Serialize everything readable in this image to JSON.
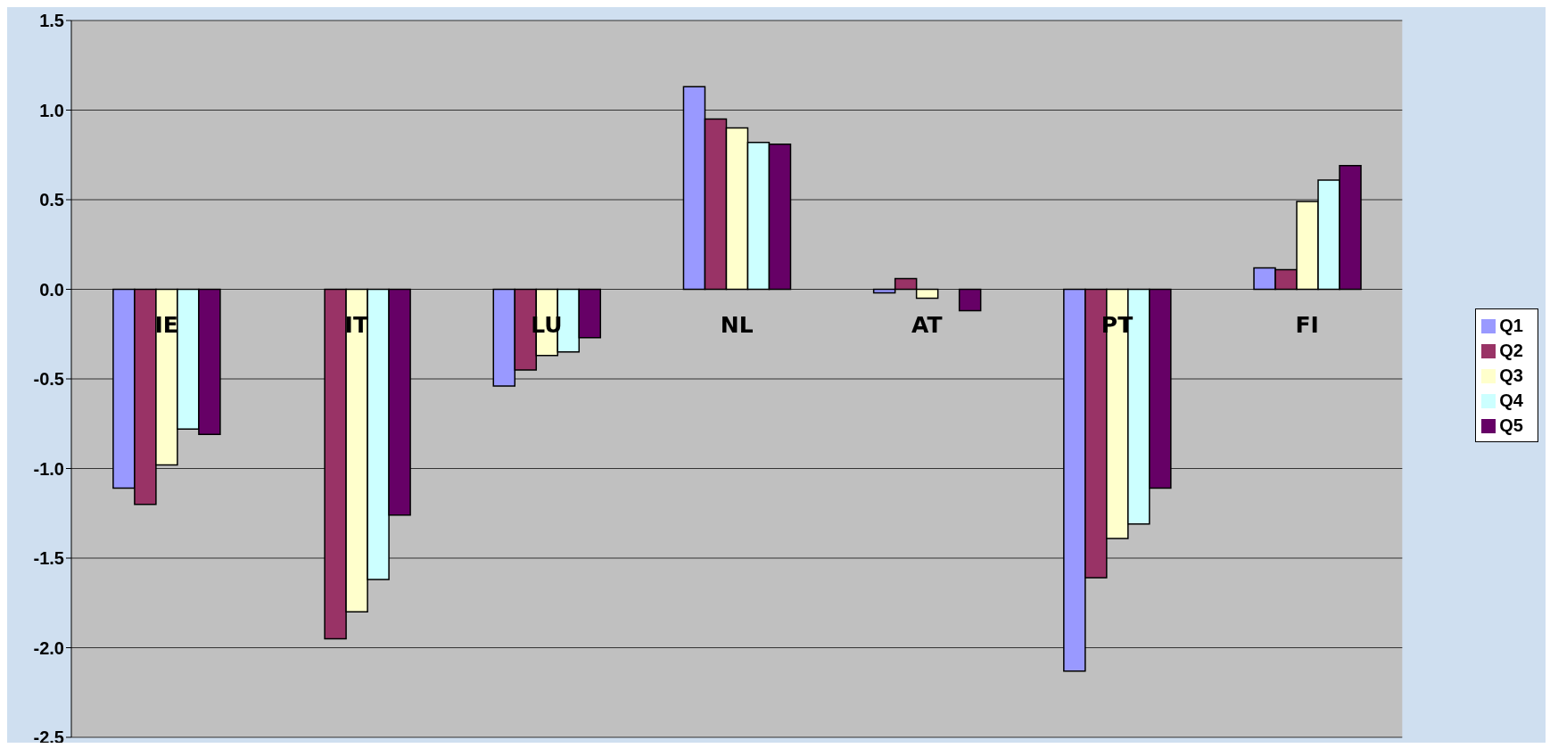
{
  "chart_data": {
    "type": "bar",
    "categories": [
      "IE",
      "IT",
      "LU",
      "NL",
      "AT",
      "PT",
      "FI"
    ],
    "series": [
      {
        "name": "Q1",
        "color": "#9999ff",
        "values": [
          -1.11,
          null,
          -0.54,
          1.13,
          -0.02,
          -2.13,
          0.12
        ]
      },
      {
        "name": "Q2",
        "color": "#993366",
        "values": [
          -1.2,
          -1.95,
          -0.45,
          0.95,
          0.06,
          -1.61,
          0.11
        ]
      },
      {
        "name": "Q3",
        "color": "#ffffcc",
        "values": [
          -0.98,
          -1.8,
          -0.37,
          0.9,
          -0.05,
          -1.39,
          0.49
        ]
      },
      {
        "name": "Q4",
        "color": "#ccffff",
        "values": [
          -0.78,
          -1.62,
          -0.35,
          0.82,
          null,
          -1.31,
          0.61
        ]
      },
      {
        "name": "Q5",
        "color": "#660066",
        "values": [
          -0.81,
          -1.26,
          -0.27,
          0.81,
          -0.12,
          -1.11,
          0.69
        ]
      }
    ],
    "ylim": [
      -2.5,
      1.5
    ],
    "yticks": [
      1.5,
      {
        "value": 1,
        "label": "1.0"
      },
      0.5,
      {
        "value": 0,
        "label": "0.0"
      },
      -0.5,
      {
        "value": -1,
        "label": "-1.0"
      },
      -1.5,
      {
        "value": -2,
        "label": "-2.0"
      },
      -2.5
    ],
    "grid": "y",
    "legend": "right"
  }
}
